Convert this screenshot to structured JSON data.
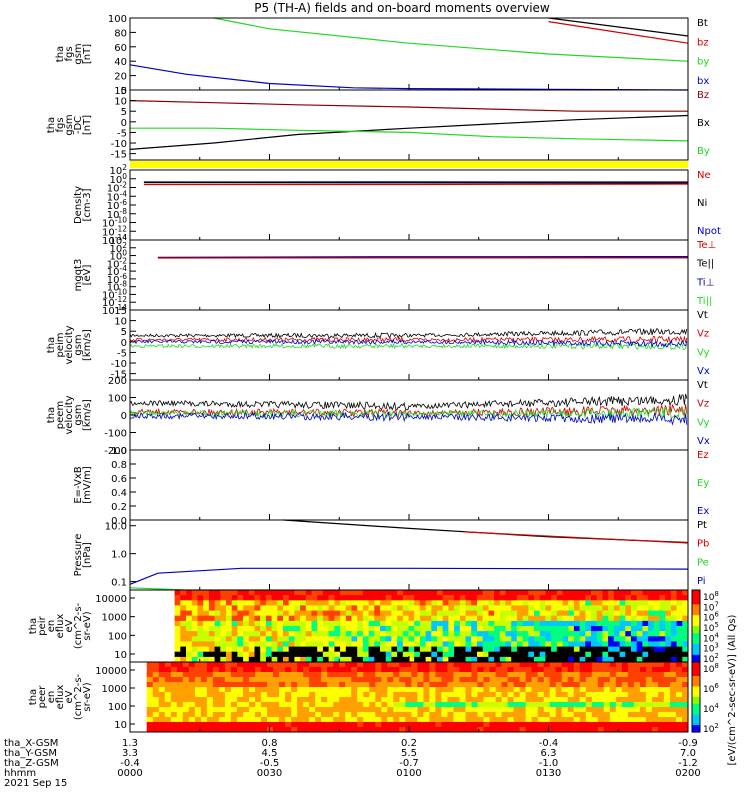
{
  "title": "P5 (TH-A) fields and on-board moments overview",
  "colors": {
    "black": "#000000",
    "red": "#d40000",
    "green": "#22d822",
    "blue": "#0000c8",
    "yellow": "#ffff00",
    "darkred": "#8b0000"
  },
  "footer": {
    "row_labels": [
      "tha_X-GSM",
      "tha_Y-GSM",
      "tha_Z-GSM",
      "hhmm",
      "2021 Sep 15"
    ],
    "columns": [
      [
        "1.3",
        "3.3",
        "-0.4",
        "0000"
      ],
      [
        "0.8",
        "4.5",
        "-0.5",
        "0030"
      ],
      [
        "0.2",
        "5.5",
        "-0.7",
        "0100"
      ],
      [
        "-0.4",
        "6.3",
        "-1.0",
        "0130"
      ],
      [
        "-0.9",
        "7.0",
        "-1.2",
        "0200"
      ]
    ]
  },
  "colorbar_label": "[eV/(cm^2-sec-sr-eV)] (All Qs)",
  "colorbar_ticks_1": [
    "10^8",
    "10^7",
    "10^6",
    "10^5",
    "10^4",
    "10^3",
    "10^2"
  ],
  "colorbar_ticks_2": [
    "10^8",
    "10^6",
    "10^4",
    "10^2"
  ],
  "chart_data": [
    {
      "type": "line",
      "ylabel": [
        "tha",
        "fgs",
        "gsm",
        "[nT]"
      ],
      "ylim": [
        0,
        100
      ],
      "yticks": [
        "0",
        "20",
        "40",
        "60",
        "80",
        "100"
      ],
      "legend": [
        {
          "name": "Bt",
          "color": "black"
        },
        {
          "name": "bz",
          "color": "red"
        },
        {
          "name": "by",
          "color": "green"
        },
        {
          "name": "bx",
          "color": "blue"
        }
      ],
      "series": [
        {
          "name": "Bt",
          "color": "black",
          "x": [
            0.0,
            0.05,
            0.5,
            1.0,
            1.5,
            2.0
          ],
          "y": [
            null,
            null,
            null,
            null,
            110,
            75
          ]
        },
        {
          "name": "bz",
          "color": "red",
          "x": [
            0.0,
            0.5,
            1.0,
            1.5,
            2.0
          ],
          "y": [
            null,
            null,
            null,
            95,
            65
          ]
        },
        {
          "name": "by",
          "color": "green",
          "x": [
            0.0,
            0.3,
            0.5,
            1.0,
            1.5,
            2.0
          ],
          "y": [
            null,
            101,
            85,
            65,
            50,
            40
          ]
        },
        {
          "name": "bx",
          "color": "blue",
          "x": [
            0.0,
            0.2,
            0.5,
            0.8,
            1.0,
            1.5,
            2.0
          ],
          "y": [
            35,
            22,
            9,
            3,
            2,
            1,
            0
          ]
        }
      ]
    },
    {
      "type": "line",
      "ylabel": [
        "tha",
        "fgs",
        "gsm",
        "-DC",
        "[nT]"
      ],
      "ylim": [
        -18,
        15
      ],
      "yticks": [
        "-15",
        "-10",
        "-5",
        "0",
        "5",
        "10",
        "15"
      ],
      "legend": [
        {
          "name": "Bz",
          "color": "darkred"
        },
        {
          "name": "Bx",
          "color": "black"
        },
        {
          "name": "By",
          "color": "green"
        }
      ],
      "series": [
        {
          "name": "Bz",
          "color": "darkred",
          "x": [
            0.0,
            0.3,
            0.6,
            1.0,
            1.3,
            1.6,
            2.0
          ],
          "y": [
            10,
            9,
            8,
            7,
            6,
            5,
            5
          ]
        },
        {
          "name": "Bx",
          "color": "black",
          "x": [
            0.0,
            0.3,
            0.6,
            1.0,
            1.3,
            1.6,
            2.0
          ],
          "y": [
            -13,
            -10,
            -6,
            -3,
            -1,
            1,
            3
          ]
        },
        {
          "name": "By",
          "color": "green",
          "x": [
            0.0,
            0.3,
            0.6,
            1.0,
            1.3,
            1.6,
            2.0
          ],
          "y": [
            -3,
            -3,
            -4,
            -5,
            -7,
            -8,
            -9
          ]
        }
      ]
    },
    {
      "type": "line",
      "ylabel": [
        "Density",
        "[cm-3]"
      ],
      "log": true,
      "ylim_exp": [
        -14,
        3
      ],
      "yticks": [
        "10^2",
        "10^0",
        "10^-2",
        "10^-4",
        "10^-6",
        "10^-8",
        "10^-10",
        "10^-12",
        "10^-14"
      ],
      "legend": [
        {
          "name": "Ne",
          "color": "red"
        },
        {
          "name": "Ni",
          "color": "black"
        },
        {
          "name": "Npot",
          "color": "blue"
        }
      ],
      "series": [
        {
          "name": "Npot",
          "color": "blue",
          "x": [
            0.0,
            0.05,
            1.0,
            2.0
          ],
          "y": [
            null,
            1.2,
            1.3,
            1.2
          ]
        },
        {
          "name": "Ni",
          "color": "black",
          "x": [
            0.0,
            0.05,
            1.0,
            2.0
          ],
          "y": [
            null,
            0.9,
            0.8,
            0.7
          ]
        },
        {
          "name": "Ne",
          "color": "red",
          "x": [
            0.0,
            0.05,
            1.0,
            2.0
          ],
          "y": [
            null,
            0.3,
            0.3,
            0.4
          ]
        }
      ]
    },
    {
      "type": "line",
      "ylabel": [
        "mgqt3",
        "[eV]"
      ],
      "log": true,
      "ylim_exp": [
        -14,
        5
      ],
      "yticks": [
        "10^4",
        "10^2",
        "10^0",
        "10^-2",
        "10^-4",
        "10^-6",
        "10^-8",
        "10^-10",
        "10^-12",
        "10^-14"
      ],
      "legend": [
        {
          "name": "Te⊥",
          "color": "red"
        },
        {
          "name": "Te||",
          "color": "black"
        },
        {
          "name": "Ti⊥",
          "color": "blue"
        },
        {
          "name": "Ti||",
          "color": "green"
        }
      ],
      "series": [
        {
          "name": "Ti⊥",
          "color": "blue",
          "x": [
            0.0,
            0.1,
            1.0,
            2.0
          ],
          "y": [
            null,
            2.0,
            3.0,
            3.2
          ]
        },
        {
          "name": "Te||",
          "color": "black",
          "x": [
            0.0,
            0.1,
            1.0,
            2.0
          ],
          "y": [
            null,
            1.5,
            1.6,
            1.7
          ]
        },
        {
          "name": "Te⊥",
          "color": "red",
          "x": [
            0.0,
            0.1,
            1.0,
            2.0
          ],
          "y": [
            null,
            1.3,
            1.4,
            1.5
          ]
        }
      ]
    },
    {
      "type": "line",
      "ylabel": [
        "tha",
        "peim",
        "velocity",
        "gsm",
        "[km/s]"
      ],
      "ylim": [
        -18,
        15
      ],
      "yticks": [
        "-15",
        "-10",
        "-5",
        "0",
        "5",
        "10",
        "15"
      ],
      "legend": [
        {
          "name": "Vt",
          "color": "black"
        },
        {
          "name": "Vz",
          "color": "red"
        },
        {
          "name": "Vy",
          "color": "green"
        },
        {
          "name": "Vx",
          "color": "blue"
        }
      ],
      "series": [
        {
          "name": "Vt",
          "color": "black",
          "x": [
            0.0,
            1.0,
            2.0
          ],
          "y": [
            3,
            3,
            5
          ]
        },
        {
          "name": "Vz",
          "color": "red",
          "x": [
            0.0,
            1.0,
            2.0
          ],
          "y": [
            1,
            1,
            1
          ]
        },
        {
          "name": "Vy",
          "color": "green",
          "x": [
            0.0,
            1.0,
            2.0
          ],
          "y": [
            -2,
            -2,
            -2
          ]
        },
        {
          "name": "Vx",
          "color": "blue",
          "x": [
            0.0,
            1.0,
            2.0
          ],
          "y": [
            0,
            0,
            -1
          ]
        }
      ]
    },
    {
      "type": "line",
      "ylabel": [
        "tha",
        "peem",
        "velocity",
        "gsm",
        "[km/s]"
      ],
      "ylim": [
        -200,
        200
      ],
      "yticks": [
        "-200",
        "-100",
        "0",
        "100",
        "200"
      ],
      "legend": [
        {
          "name": "Vt",
          "color": "black"
        },
        {
          "name": "Vz",
          "color": "red"
        },
        {
          "name": "Vy",
          "color": "green"
        },
        {
          "name": "Vx",
          "color": "blue"
        }
      ],
      "series": [
        {
          "name": "Vt",
          "color": "black",
          "x": [
            0.0,
            1.0,
            2.0
          ],
          "y": [
            70,
            50,
            90
          ]
        },
        {
          "name": "Vz",
          "color": "red",
          "x": [
            0.0,
            1.0,
            2.0
          ],
          "y": [
            20,
            10,
            30
          ]
        },
        {
          "name": "Vy",
          "color": "green",
          "x": [
            0.0,
            1.0,
            2.0
          ],
          "y": [
            10,
            5,
            10
          ]
        },
        {
          "name": "Vx",
          "color": "blue",
          "x": [
            0.0,
            1.0,
            2.0
          ],
          "y": [
            -5,
            -10,
            -25
          ]
        }
      ]
    },
    {
      "type": "line",
      "ylabel": [
        "E=-VxB",
        "[mV/m]"
      ],
      "ylim": [
        0,
        1
      ],
      "yticks": [
        "0.0",
        "0.2",
        "0.4",
        "0.6",
        "0.8",
        "1.0"
      ],
      "legend": [
        {
          "name": "Ez",
          "color": "red"
        },
        {
          "name": "Ey",
          "color": "green"
        },
        {
          "name": "Ex",
          "color": "blue"
        }
      ],
      "series": []
    },
    {
      "type": "line",
      "ylabel": [
        "Pressure",
        "[nPa]"
      ],
      "log": true,
      "ylim": [
        0.05,
        16
      ],
      "yticks": [
        "10.0",
        "1.0",
        "0.1"
      ],
      "legend": [
        {
          "name": "Pt",
          "color": "black"
        },
        {
          "name": "Pb",
          "color": "red"
        },
        {
          "name": "Pe",
          "color": "green"
        },
        {
          "name": "Pi",
          "color": "blue"
        }
      ],
      "series": [
        {
          "name": "Pt",
          "color": "black",
          "x": [
            0.0,
            0.55,
            1.0,
            1.5,
            2.0
          ],
          "y": [
            null,
            20,
            8,
            4,
            2.5
          ]
        },
        {
          "name": "Pb",
          "color": "red",
          "x": [
            0.0,
            1.2,
            2.0
          ],
          "y": [
            null,
            6,
            2.4
          ]
        },
        {
          "name": "Pi",
          "color": "blue",
          "x": [
            0.0,
            0.1,
            0.4,
            1.0,
            2.0
          ],
          "y": [
            0.08,
            0.2,
            0.3,
            0.3,
            0.28
          ]
        },
        {
          "name": "Pe",
          "color": "green",
          "x": [
            0.0,
            0.2,
            0.5
          ],
          "y": [
            0.06,
            0.05,
            0.05
          ]
        }
      ]
    },
    {
      "type": "heatmap",
      "ylabel": [
        "tha",
        "peir",
        "en",
        "eflux",
        "eV",
        "(cm^2-s-",
        "sr-eV)"
      ],
      "yticks": [
        "10",
        "100",
        "1000",
        "10000"
      ],
      "data_start": 0.08
    },
    {
      "type": "heatmap",
      "ylabel": [
        "tha",
        "peer",
        "en",
        "eflux",
        "eV",
        "(cm^2-s-",
        "sr-eV)"
      ],
      "yticks": [
        "10",
        "100",
        "1000",
        "10000"
      ],
      "data_start": 0.03
    }
  ]
}
